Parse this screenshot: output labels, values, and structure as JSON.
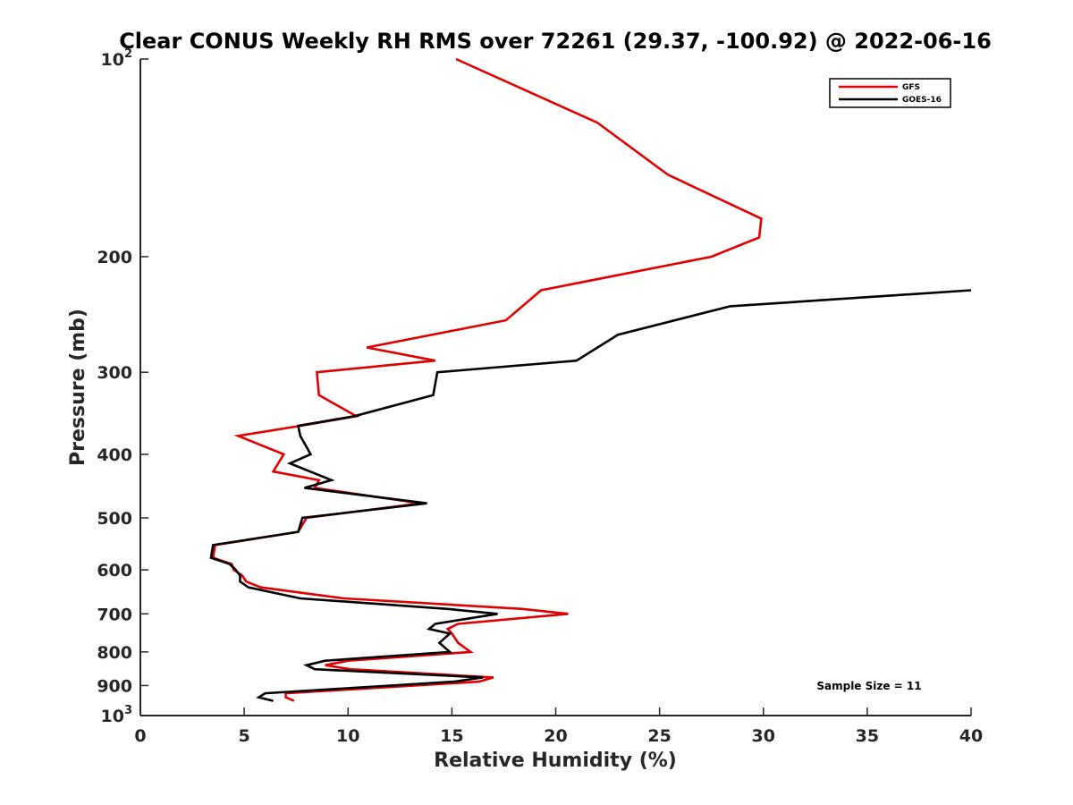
{
  "chart_data": {
    "type": "line",
    "title": "Clear CONUS Weekly RH RMS over 72261 (29.37, -100.92) @ 2022-06-16",
    "xlabel": "Relative Humidity (%)",
    "ylabel": "Pressure (mb)",
    "xlim": [
      0,
      40
    ],
    "ylim": [
      100,
      1000
    ],
    "y_scale": "log",
    "y_reversed": true,
    "grid": false,
    "legend_position": "top-right",
    "x_ticks": [
      "0",
      "5",
      "10",
      "15",
      "20",
      "25",
      "30",
      "35",
      "40"
    ],
    "y_ticks": [
      {
        "value": 100,
        "label": "10",
        "sup": "2"
      },
      {
        "value": 200,
        "label": "200",
        "sup": ""
      },
      {
        "value": 300,
        "label": "300",
        "sup": ""
      },
      {
        "value": 400,
        "label": "400",
        "sup": ""
      },
      {
        "value": 500,
        "label": "500",
        "sup": ""
      },
      {
        "value": 600,
        "label": "600",
        "sup": ""
      },
      {
        "value": 700,
        "label": "700",
        "sup": ""
      },
      {
        "value": 800,
        "label": "800",
        "sup": ""
      },
      {
        "value": 900,
        "label": "900",
        "sup": ""
      },
      {
        "value": 1000,
        "label": "10",
        "sup": "3"
      }
    ],
    "annotation": "Sample Size = 11",
    "series": [
      {
        "name": "GFS",
        "color": "#e00000",
        "points": [
          [
            15.2,
            100
          ],
          [
            22.0,
            125
          ],
          [
            25.4,
            150
          ],
          [
            29.9,
            175
          ],
          [
            29.8,
            187
          ],
          [
            27.5,
            200
          ],
          [
            19.3,
            225
          ],
          [
            17.6,
            250
          ],
          [
            10.9,
            275
          ],
          [
            14.2,
            288
          ],
          [
            8.5,
            300
          ],
          [
            8.6,
            325
          ],
          [
            10.4,
            350
          ],
          [
            7.7,
            362
          ],
          [
            4.7,
            375
          ],
          [
            6.9,
            400
          ],
          [
            6.4,
            425
          ],
          [
            8.6,
            438
          ],
          [
            8.4,
            450
          ],
          [
            13.5,
            475
          ],
          [
            8.0,
            500
          ],
          [
            7.6,
            525
          ],
          [
            3.6,
            550
          ],
          [
            3.5,
            575
          ],
          [
            4.4,
            588
          ],
          [
            4.5,
            600
          ],
          [
            4.9,
            612
          ],
          [
            5.1,
            625
          ],
          [
            5.8,
            638
          ],
          [
            9.8,
            663
          ],
          [
            18.4,
            688
          ],
          [
            20.6,
            700
          ],
          [
            15.3,
            725
          ],
          [
            14.8,
            738
          ],
          [
            15.0,
            750
          ],
          [
            15.3,
            775
          ],
          [
            15.9,
            800
          ],
          [
            10.0,
            825
          ],
          [
            8.9,
            838
          ],
          [
            10.1,
            850
          ],
          [
            17.0,
            875
          ],
          [
            16.3,
            888
          ],
          [
            7.0,
            925
          ],
          [
            7.0,
            938
          ],
          [
            7.4,
            950
          ]
        ]
      },
      {
        "name": "GOES-16",
        "color": "#000000",
        "points": [
          [
            40.0,
            225
          ],
          [
            28.4,
            238
          ],
          [
            23.0,
            263
          ],
          [
            21.0,
            288
          ],
          [
            14.3,
            300
          ],
          [
            14.1,
            325
          ],
          [
            10.3,
            350
          ],
          [
            7.6,
            362
          ],
          [
            7.7,
            375
          ],
          [
            8.2,
            400
          ],
          [
            7.2,
            413
          ],
          [
            9.2,
            438
          ],
          [
            7.9,
            450
          ],
          [
            13.8,
            475
          ],
          [
            7.8,
            500
          ],
          [
            7.6,
            525
          ],
          [
            3.5,
            550
          ],
          [
            3.4,
            575
          ],
          [
            4.3,
            588
          ],
          [
            4.6,
            600
          ],
          [
            4.8,
            612
          ],
          [
            4.8,
            625
          ],
          [
            5.2,
            638
          ],
          [
            7.7,
            663
          ],
          [
            14.8,
            688
          ],
          [
            17.2,
            700
          ],
          [
            14.2,
            725
          ],
          [
            13.9,
            738
          ],
          [
            14.9,
            750
          ],
          [
            14.4,
            775
          ],
          [
            14.9,
            800
          ],
          [
            8.9,
            825
          ],
          [
            8.0,
            838
          ],
          [
            8.4,
            850
          ],
          [
            16.5,
            875
          ],
          [
            15.1,
            888
          ],
          [
            6.0,
            925
          ],
          [
            5.7,
            938
          ],
          [
            6.4,
            950
          ]
        ]
      }
    ]
  }
}
